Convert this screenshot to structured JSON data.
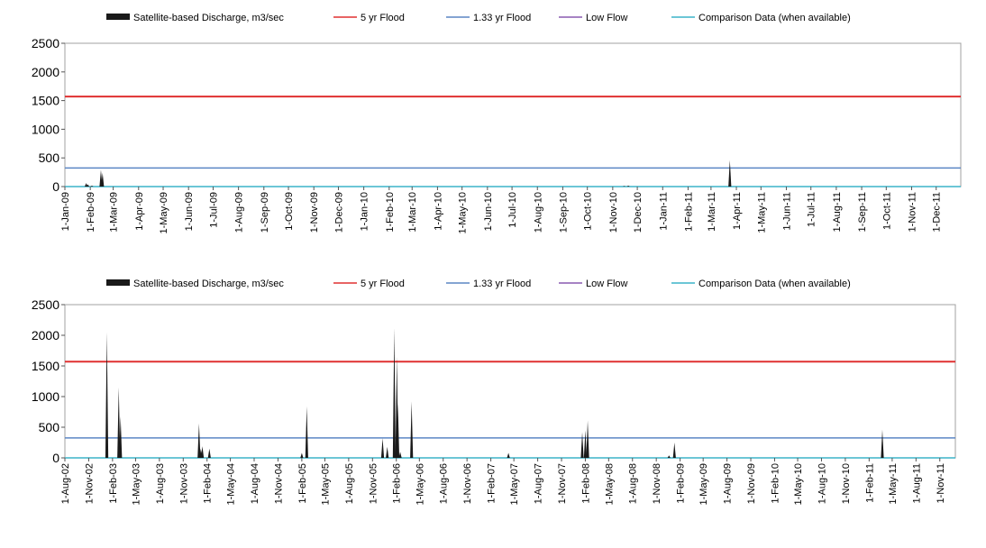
{
  "colors": {
    "discharge": "#1a1a1a",
    "flood_5yr": "#e03030",
    "flood_133yr": "#5b86c4",
    "low_flow": "#8a5ab0",
    "comparison": "#3bb4c8",
    "frame": "#a0a0a0"
  },
  "chart_data": [
    {
      "type": "area",
      "legend": [
        {
          "key": "discharge",
          "label": "Satellite-based Discharge, m3/sec",
          "swatch": "block"
        },
        {
          "key": "flood_5yr",
          "label": "5 yr Flood",
          "swatch": "line"
        },
        {
          "key": "flood_133yr",
          "label": "1.33 yr Flood",
          "swatch": "line"
        },
        {
          "key": "low_flow",
          "label": "Low Flow",
          "swatch": "line"
        },
        {
          "key": "comparison",
          "label": "Comparison Data (when available)",
          "swatch": "line"
        }
      ],
      "ylim": [
        0,
        2500
      ],
      "yticks": [
        0,
        500,
        1000,
        1500,
        2000,
        2500
      ],
      "xlim": [
        "2009-01-01",
        "2011-12-31"
      ],
      "xticks": [
        "2009-01-01",
        "2009-02-01",
        "2009-03-01",
        "2009-04-01",
        "2009-05-01",
        "2009-06-01",
        "2009-07-01",
        "2009-08-01",
        "2009-09-01",
        "2009-10-01",
        "2009-11-01",
        "2009-12-01",
        "2010-01-01",
        "2010-02-01",
        "2010-03-01",
        "2010-04-01",
        "2010-05-01",
        "2010-06-01",
        "2010-07-01",
        "2010-08-01",
        "2010-09-01",
        "2010-10-01",
        "2010-11-01",
        "2010-12-01",
        "2011-01-01",
        "2011-02-01",
        "2011-03-01",
        "2011-04-01",
        "2011-05-01",
        "2011-06-01",
        "2011-07-01",
        "2011-08-01",
        "2011-09-01",
        "2011-10-01",
        "2011-11-01",
        "2011-12-01"
      ],
      "xtick_labels": [
        "1-Jan-09",
        "1-Feb-09",
        "1-Mar-09",
        "1-Apr-09",
        "1-May-09",
        "1-Jun-09",
        "1-Jul-09",
        "1-Aug-09",
        "1-Sep-09",
        "1-Oct-09",
        "1-Nov-09",
        "1-Dec-09",
        "1-Jan-10",
        "1-Feb-10",
        "1-Mar-10",
        "1-Apr-10",
        "1-May-10",
        "1-Jun-10",
        "1-Jul-10",
        "1-Aug-10",
        "1-Sep-10",
        "1-Oct-10",
        "1-Nov-10",
        "1-Dec-10",
        "1-Jan-11",
        "1-Feb-11",
        "1-Mar-11",
        "1-Apr-11",
        "1-May-11",
        "1-Jun-11",
        "1-Jul-11",
        "1-Aug-11",
        "1-Sep-11",
        "1-Oct-11",
        "1-Nov-11",
        "1-Dec-11"
      ],
      "flood_5yr": 1570,
      "flood_133yr": 325,
      "low_flow": 0,
      "discharge_peaks": [
        {
          "date": "2009-01-27",
          "value": 60
        },
        {
          "date": "2009-01-29",
          "value": 40
        },
        {
          "date": "2009-02-03",
          "value": 15
        },
        {
          "date": "2009-02-14",
          "value": 290
        },
        {
          "date": "2009-02-16",
          "value": 240
        },
        {
          "date": "2010-11-15",
          "value": 10
        },
        {
          "date": "2010-11-20",
          "value": 15
        },
        {
          "date": "2011-03-24",
          "value": 460
        }
      ]
    },
    {
      "type": "area",
      "legend": [
        {
          "key": "discharge",
          "label": "Satellite-based Discharge, m3/sec",
          "swatch": "block"
        },
        {
          "key": "flood_5yr",
          "label": "5 yr Flood",
          "swatch": "line"
        },
        {
          "key": "flood_133yr",
          "label": "1.33 yr Flood",
          "swatch": "line"
        },
        {
          "key": "low_flow",
          "label": "Low Flow",
          "swatch": "line"
        },
        {
          "key": "comparison",
          "label": "Comparison Data (when available)",
          "swatch": "line"
        }
      ],
      "ylim": [
        0,
        2500
      ],
      "yticks": [
        0,
        500,
        1000,
        1500,
        2000,
        2500
      ],
      "xlim": [
        "2002-08-01",
        "2011-12-31"
      ],
      "xticks": [
        "2002-08-01",
        "2002-11-01",
        "2003-02-01",
        "2003-05-01",
        "2003-08-01",
        "2003-11-01",
        "2004-02-01",
        "2004-05-01",
        "2004-08-01",
        "2004-11-01",
        "2005-02-01",
        "2005-05-01",
        "2005-08-01",
        "2005-11-01",
        "2006-02-01",
        "2006-05-01",
        "2006-08-01",
        "2006-11-01",
        "2007-02-01",
        "2007-05-01",
        "2007-08-01",
        "2007-11-01",
        "2008-02-01",
        "2008-05-01",
        "2008-08-01",
        "2008-11-01",
        "2009-02-01",
        "2009-05-01",
        "2009-08-01",
        "2009-11-01",
        "2010-02-01",
        "2010-05-01",
        "2010-08-01",
        "2010-11-01",
        "2011-02-01",
        "2011-05-01",
        "2011-08-01",
        "2011-11-01"
      ],
      "xtick_labels": [
        "1-Aug-02",
        "1-Nov-02",
        "1-Feb-03",
        "1-May-03",
        "1-Aug-03",
        "1-Nov-03",
        "1-Feb-04",
        "1-May-04",
        "1-Aug-04",
        "1-Nov-04",
        "1-Feb-05",
        "1-May-05",
        "1-Aug-05",
        "1-Nov-05",
        "1-Feb-06",
        "1-May-06",
        "1-Aug-06",
        "1-Nov-06",
        "1-Feb-07",
        "1-May-07",
        "1-Aug-07",
        "1-Nov-07",
        "1-Feb-08",
        "1-May-08",
        "1-Aug-08",
        "1-Nov-08",
        "1-Feb-09",
        "1-May-09",
        "1-Aug-09",
        "1-Nov-09",
        "1-Feb-10",
        "1-May-10",
        "1-Aug-10",
        "1-Nov-10",
        "1-Feb-11",
        "1-May-11",
        "1-Aug-11",
        "1-Nov-11"
      ],
      "flood_5yr": 1570,
      "flood_133yr": 325,
      "low_flow": 0,
      "discharge_peaks": [
        {
          "date": "2003-01-10",
          "value": 2050
        },
        {
          "date": "2003-02-25",
          "value": 1150
        },
        {
          "date": "2003-03-04",
          "value": 680
        },
        {
          "date": "2004-01-01",
          "value": 560
        },
        {
          "date": "2004-01-08",
          "value": 150
        },
        {
          "date": "2004-01-14",
          "value": 190
        },
        {
          "date": "2004-02-10",
          "value": 150
        },
        {
          "date": "2005-02-01",
          "value": 80
        },
        {
          "date": "2005-02-20",
          "value": 840
        },
        {
          "date": "2005-12-10",
          "value": 320
        },
        {
          "date": "2005-12-28",
          "value": 180
        },
        {
          "date": "2006-01-24",
          "value": 2120
        },
        {
          "date": "2006-02-03",
          "value": 1650
        },
        {
          "date": "2006-02-07",
          "value": 900
        },
        {
          "date": "2006-02-16",
          "value": 100
        },
        {
          "date": "2006-04-01",
          "value": 920
        },
        {
          "date": "2007-04-10",
          "value": 80
        },
        {
          "date": "2008-01-20",
          "value": 420
        },
        {
          "date": "2008-02-01",
          "value": 450
        },
        {
          "date": "2008-02-10",
          "value": 610
        },
        {
          "date": "2008-12-20",
          "value": 40
        },
        {
          "date": "2009-01-10",
          "value": 250
        },
        {
          "date": "2011-03-24",
          "value": 460
        }
      ]
    }
  ]
}
